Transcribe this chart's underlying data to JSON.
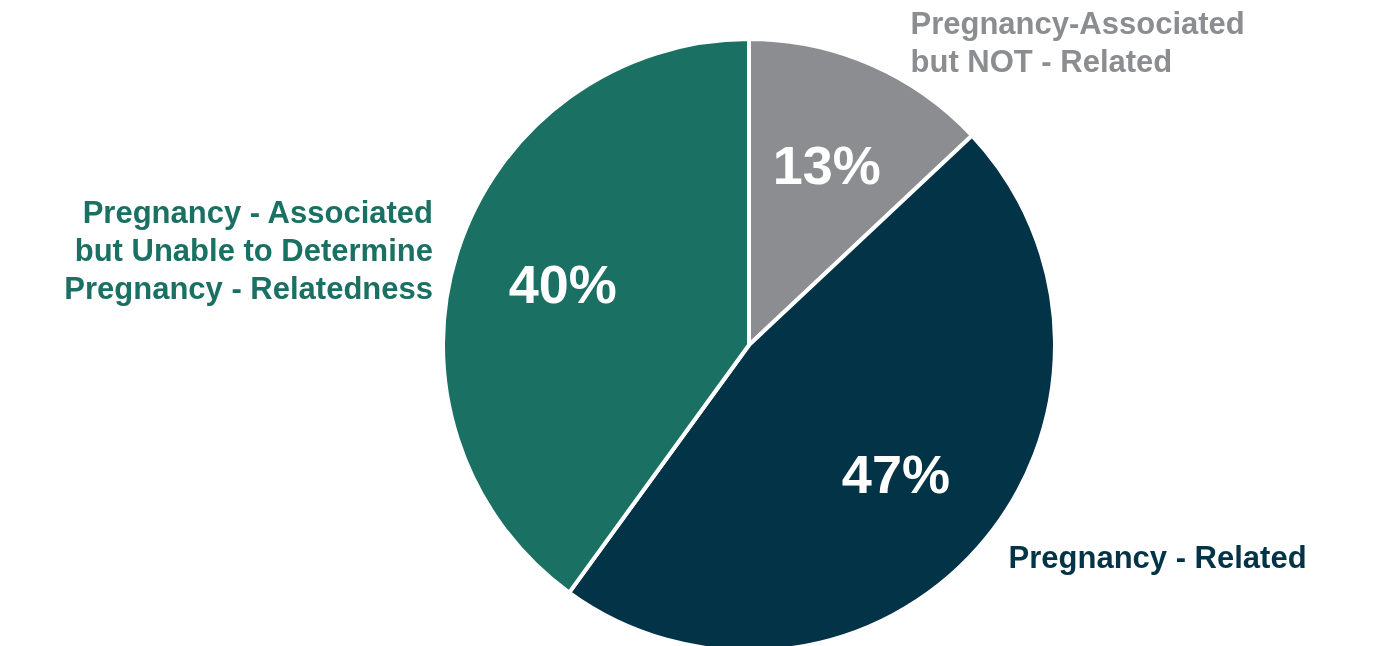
{
  "chart_data": {
    "type": "pie",
    "categories": [
      "Pregnancy-Associated but NOT - Related",
      "Pregnancy - Related",
      "Pregnancy - Associated but Unable to Determine Pregnancy - Relatedness"
    ],
    "values": [
      13,
      47,
      40
    ],
    "colors": [
      "#8c8d90",
      "#023346",
      "#1a7062"
    ],
    "value_labels": [
      "13%",
      "47%",
      "40%"
    ]
  }
}
